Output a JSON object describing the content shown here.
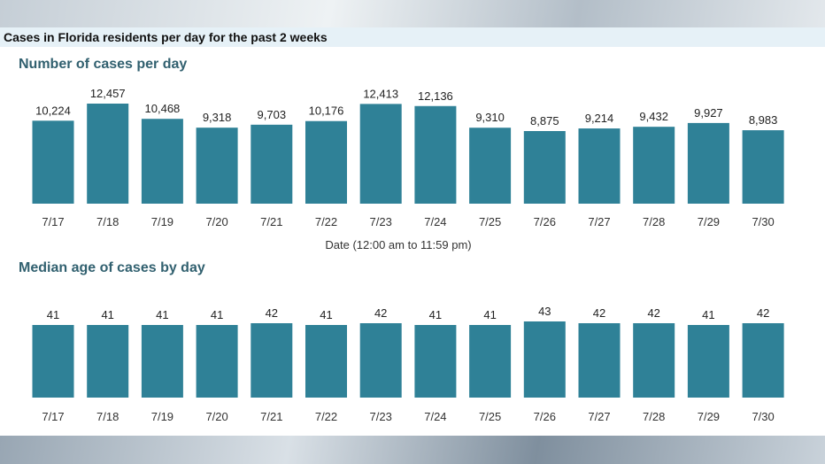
{
  "header": {
    "title": "Cases in Florida residents per day for the past 2 weeks"
  },
  "colors": {
    "bar": "#2f8197",
    "title": "#31606f",
    "band": "#e6f1f7"
  },
  "chart_data": [
    {
      "type": "bar",
      "title": "Number of cases per day",
      "xlabel": "Date (12:00 am to 11:59 pm)",
      "ylabel": "",
      "categories": [
        "7/17",
        "7/18",
        "7/19",
        "7/20",
        "7/21",
        "7/22",
        "7/23",
        "7/24",
        "7/25",
        "7/26",
        "7/27",
        "7/28",
        "7/29",
        "7/30"
      ],
      "values": [
        10224,
        12457,
        10468,
        9318,
        9703,
        10176,
        12413,
        12136,
        9310,
        8875,
        9214,
        9432,
        9927,
        8983
      ],
      "value_labels": [
        "10,224",
        "12,457",
        "10,468",
        "9,318",
        "9,703",
        "10,176",
        "12,413",
        "12,136",
        "9,310",
        "8,875",
        "9,214",
        "9,432",
        "9,927",
        "8,983"
      ],
      "ylim": [
        0,
        12457
      ],
      "grid": false
    },
    {
      "type": "bar",
      "title": "Median age of cases by day",
      "xlabel": "",
      "ylabel": "",
      "categories": [
        "7/17",
        "7/18",
        "7/19",
        "7/20",
        "7/21",
        "7/22",
        "7/23",
        "7/24",
        "7/25",
        "7/26",
        "7/27",
        "7/28",
        "7/29",
        "7/30"
      ],
      "values": [
        41,
        41,
        41,
        41,
        42,
        41,
        42,
        41,
        41,
        43,
        42,
        42,
        41,
        42
      ],
      "value_labels": [
        "41",
        "41",
        "41",
        "41",
        "42",
        "41",
        "42",
        "41",
        "41",
        "43",
        "42",
        "42",
        "41",
        "42"
      ],
      "ylim": [
        0,
        43
      ],
      "grid": false
    }
  ]
}
